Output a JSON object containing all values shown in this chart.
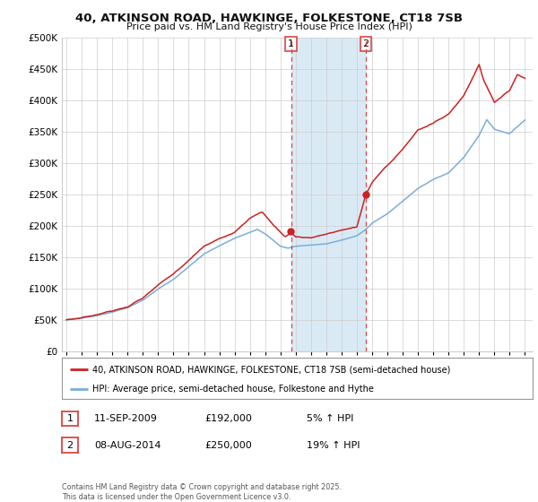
{
  "title_line1": "40, ATKINSON ROAD, HAWKINGE, FOLKESTONE, CT18 7SB",
  "title_line2": "Price paid vs. HM Land Registry's House Price Index (HPI)",
  "legend_line1": "40, ATKINSON ROAD, HAWKINGE, FOLKESTONE, CT18 7SB (semi-detached house)",
  "legend_line2": "HPI: Average price, semi-detached house, Folkestone and Hythe",
  "annotation1_date": "11-SEP-2009",
  "annotation1_price": "£192,000",
  "annotation1_change": "5% ↑ HPI",
  "annotation2_date": "08-AUG-2014",
  "annotation2_price": "£250,000",
  "annotation2_change": "19% ↑ HPI",
  "footer": "Contains HM Land Registry data © Crown copyright and database right 2025.\nThis data is licensed under the Open Government Licence v3.0.",
  "red_color": "#cc2222",
  "blue_color": "#7aaddb",
  "shaded_color": "#daeaf5",
  "dashed_line_color": "#dd4444",
  "ylim_min": 0,
  "ylim_max": 500000,
  "ytick_step": 50000,
  "background_color": "#ffffff",
  "grid_color": "#cccccc",
  "sale1_year": 2009.69,
  "sale2_year": 2014.58,
  "sale1_price": 192000,
  "sale2_price": 250000
}
